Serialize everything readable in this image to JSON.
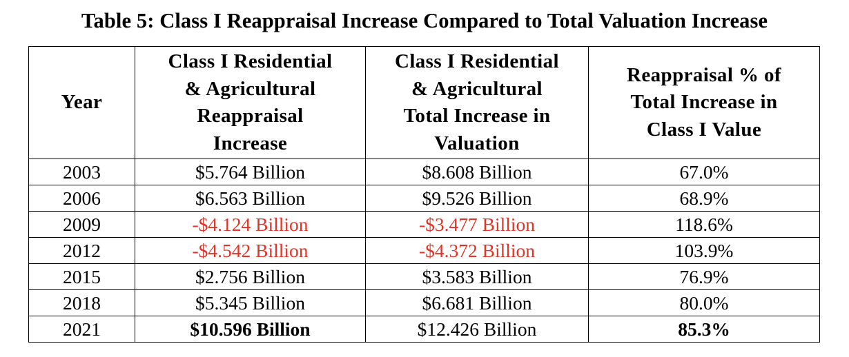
{
  "caption": "Table 5: Class I Reappraisal Increase Compared to Total Valuation Increase",
  "headers": {
    "year": [
      "Year"
    ],
    "reappraisal": [
      "Class I Residential",
      "& Agricultural",
      "Reappraisal",
      "Increase"
    ],
    "total": [
      "Class I Residential",
      "& Agricultural",
      "Total Increase in",
      "Valuation"
    ],
    "percent": [
      "Reappraisal % of",
      "Total Increase in",
      "Class I Value"
    ]
  },
  "colors": {
    "negative": "#e03426",
    "text": "#000000"
  },
  "rows": [
    {
      "year": "2003",
      "reappraisal": "$5.764 Billion",
      "total": "$8.608 Billion",
      "percent": "67.0%"
    },
    {
      "year": "2006",
      "reappraisal": "$6.563 Billion",
      "total": "$9.526 Billion",
      "percent": "68.9%"
    },
    {
      "year": "2009",
      "reappraisal": "-$4.124 Billion",
      "total": "-$3.477 Billion",
      "percent": "118.6%"
    },
    {
      "year": "2012",
      "reappraisal": "-$4.542 Billion",
      "total": "-$4.372 Billion",
      "percent": "103.9%"
    },
    {
      "year": "2015",
      "reappraisal": "$2.756 Billion",
      "total": "$3.583 Billion",
      "percent": "76.9%"
    },
    {
      "year": "2018",
      "reappraisal": "$5.345 Billion",
      "total": "$6.681 Billion",
      "percent": "80.0%"
    },
    {
      "year": "2021",
      "reappraisal": "$10.596 Billion",
      "total": "$12.426 Billion",
      "percent": "85.3%"
    }
  ]
}
